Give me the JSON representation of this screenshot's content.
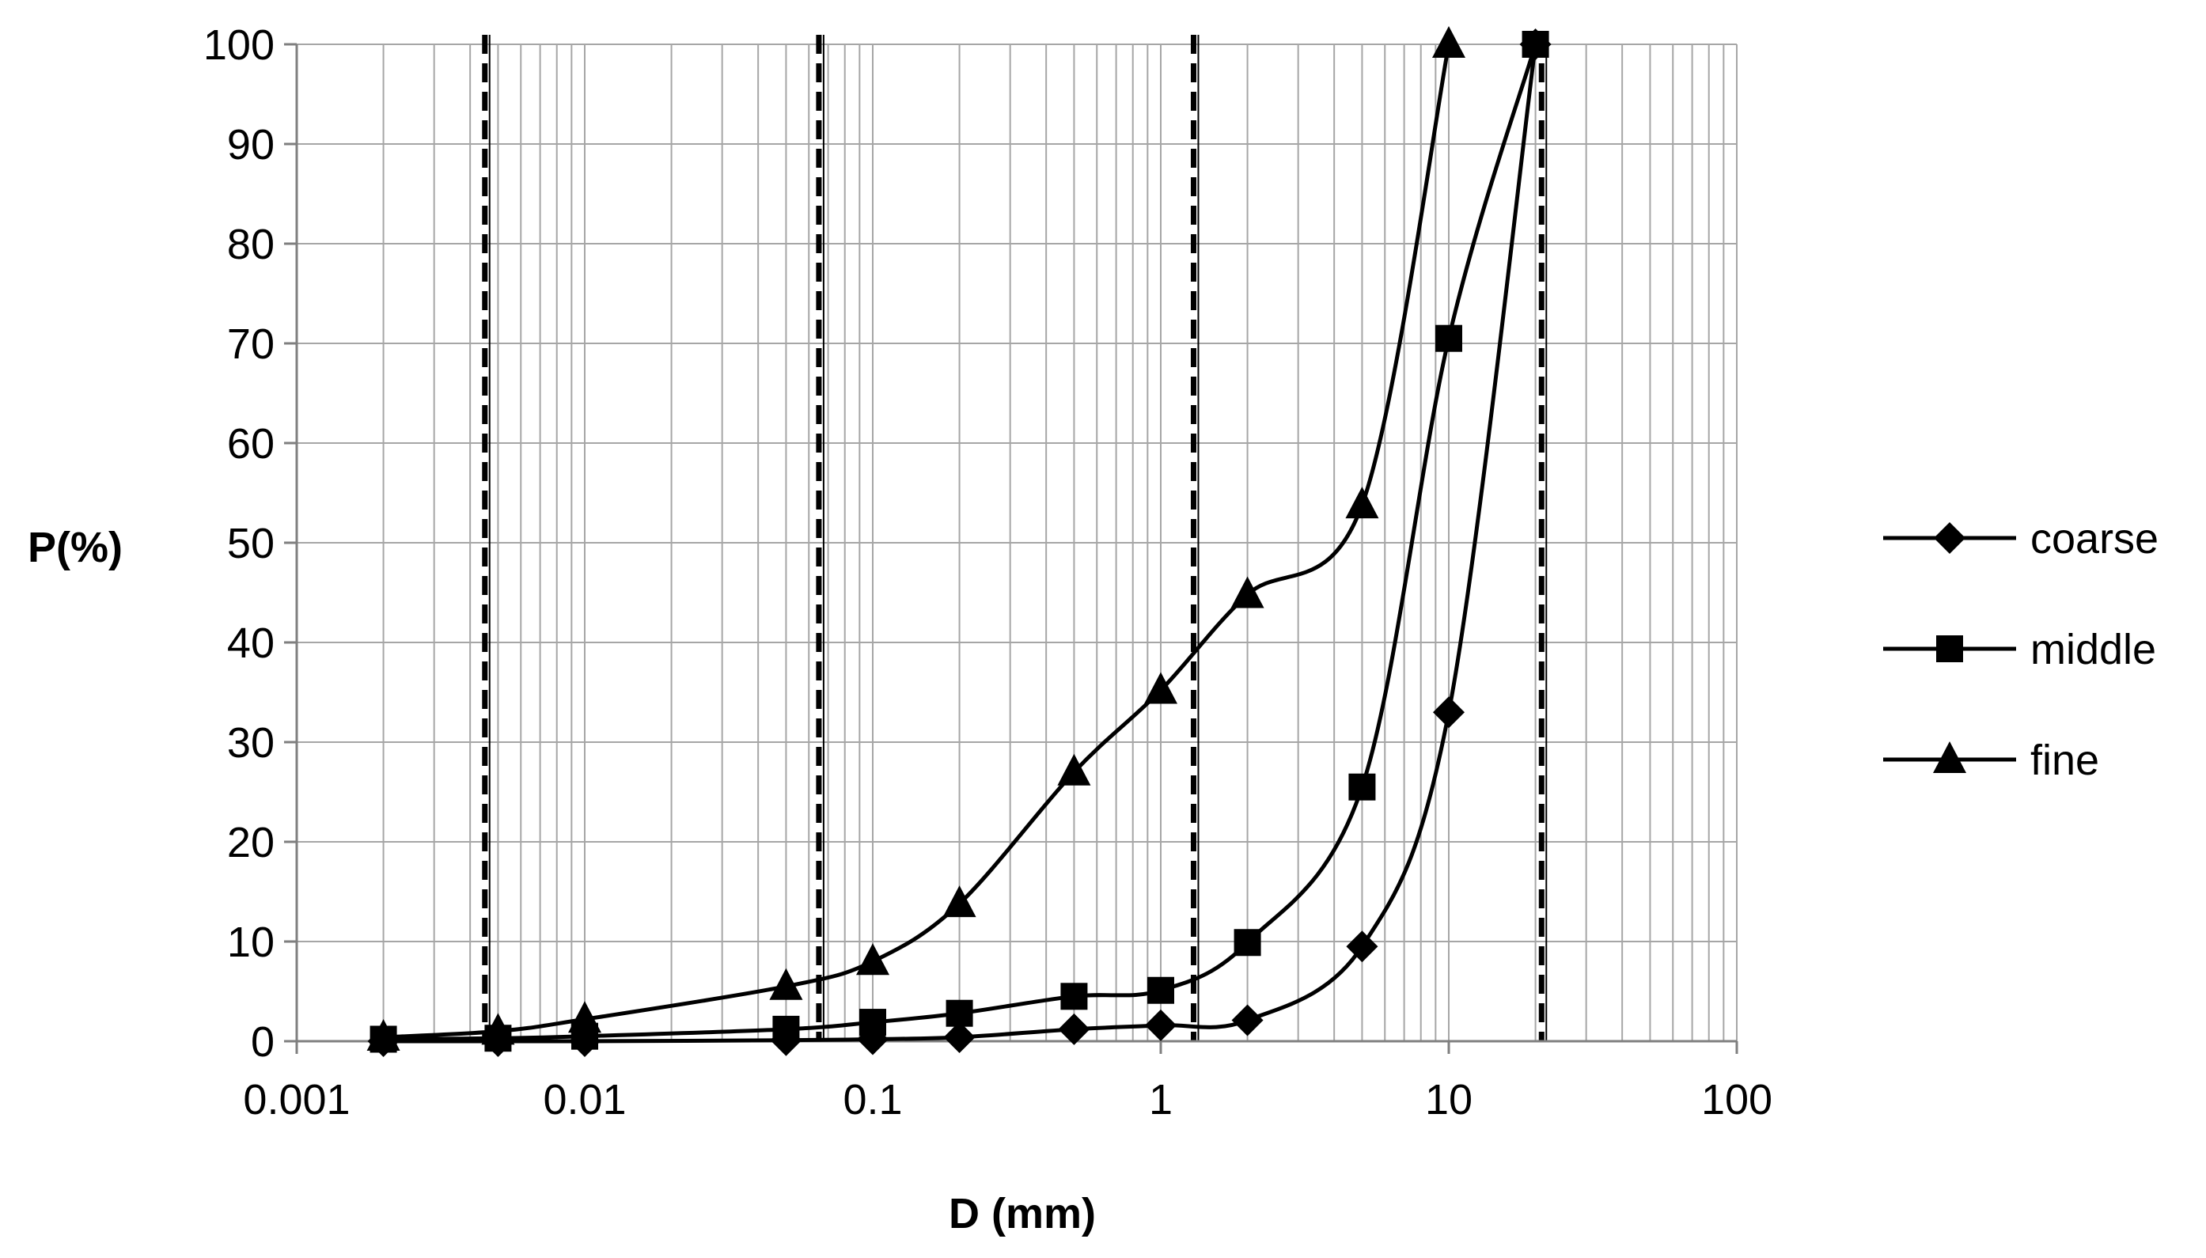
{
  "chart_data": {
    "type": "line",
    "title": "",
    "xlabel": "D (mm)",
    "ylabel": "P(%)",
    "xscale": "log",
    "xlim": [
      0.001,
      100
    ],
    "ylim": [
      0,
      100
    ],
    "grid": true,
    "x_tick_labels": [
      "0.001",
      "0.01",
      "0.1",
      "1",
      "10",
      "100"
    ],
    "y_tick_labels": [
      "0",
      "10",
      "20",
      "30",
      "40",
      "50",
      "60",
      "70",
      "80",
      "90",
      "100"
    ],
    "reference_lines_x": [
      0.0045,
      0.065,
      1.3,
      21
    ],
    "legend_position": "right",
    "series": [
      {
        "name": "coarse",
        "marker": "diamond",
        "x": [
          0.002,
          0.005,
          0.01,
          0.05,
          0.1,
          0.2,
          0.5,
          1,
          2,
          5,
          10,
          20
        ],
        "values": [
          0,
          0,
          0,
          0.1,
          0.2,
          0.4,
          1.2,
          1.6,
          2.1,
          9.5,
          33,
          100
        ]
      },
      {
        "name": "middle",
        "marker": "square",
        "x": [
          0.002,
          0.005,
          0.01,
          0.05,
          0.1,
          0.2,
          0.5,
          1,
          2,
          5,
          10,
          20
        ],
        "values": [
          0.2,
          0.3,
          0.5,
          1.2,
          1.9,
          2.8,
          4.5,
          5.1,
          9.9,
          25.5,
          70.5,
          100
        ]
      },
      {
        "name": "fine",
        "marker": "triangle",
        "x": [
          0.002,
          0.005,
          0.01,
          0.05,
          0.1,
          0.2,
          0.5,
          1,
          2,
          5,
          10
        ],
        "values": [
          0.4,
          1,
          2.2,
          5.5,
          8,
          13.8,
          27,
          35.2,
          44.8,
          53.8,
          100
        ]
      }
    ]
  }
}
